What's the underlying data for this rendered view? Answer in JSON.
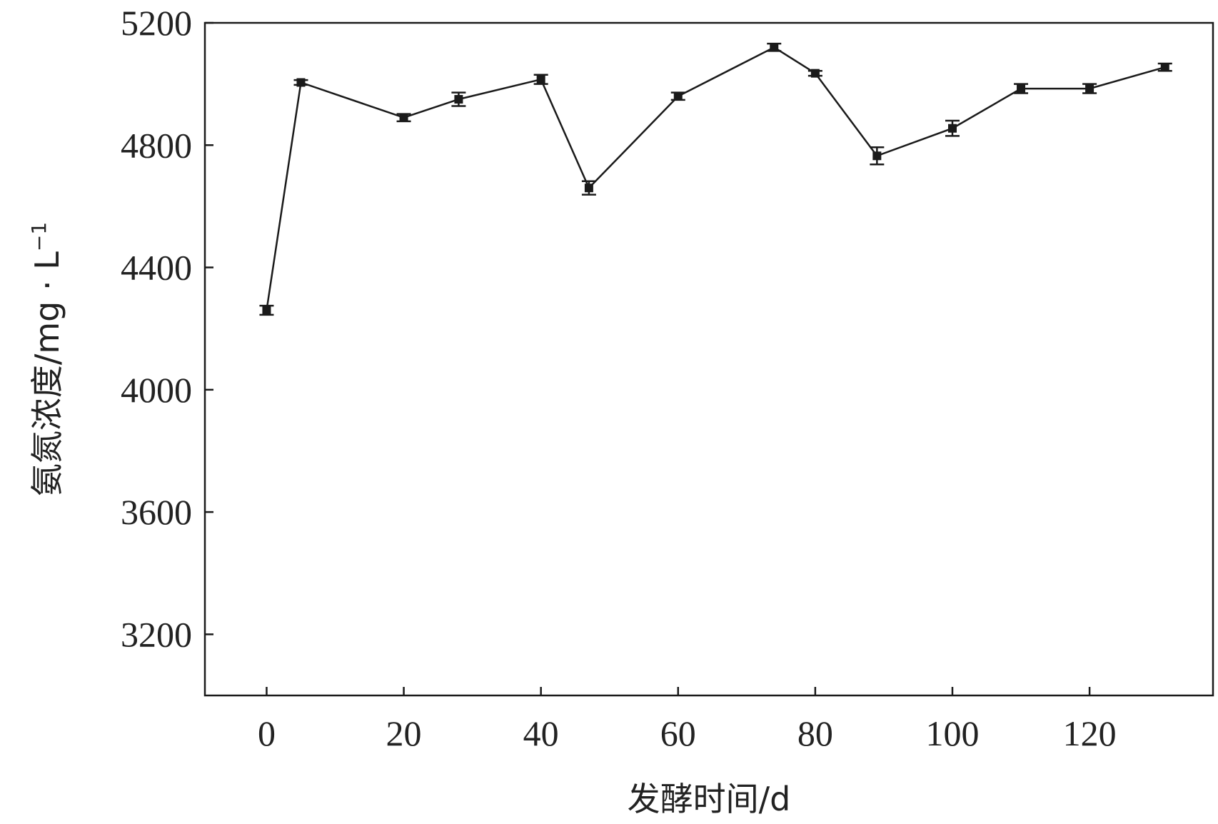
{
  "chart_data": {
    "type": "line",
    "title": "",
    "xlabel": "发酵时间/d",
    "ylabel": "氨氮浓度/mg · L",
    "ylabel_superscript": "−1",
    "xlim": [
      -9,
      138
    ],
    "ylim": [
      3000,
      5200
    ],
    "xticks": [
      0,
      20,
      40,
      60,
      80,
      100,
      120
    ],
    "yticks": [
      3200,
      3600,
      4000,
      4400,
      4800,
      5200
    ],
    "grid": false,
    "legend": "none",
    "series": [
      {
        "x": [
          0,
          5,
          20,
          28,
          40,
          47,
          60,
          74,
          80,
          89,
          100,
          110,
          120,
          131
        ],
        "y": [
          4260,
          5005,
          4890,
          4950,
          5015,
          4660,
          4960,
          5120,
          5035,
          4765,
          4855,
          4985,
          4985,
          5055
        ],
        "err": [
          15,
          8,
          12,
          22,
          15,
          22,
          12,
          12,
          8,
          28,
          25,
          15,
          15,
          12
        ],
        "color": "#1a1a1a"
      }
    ]
  }
}
